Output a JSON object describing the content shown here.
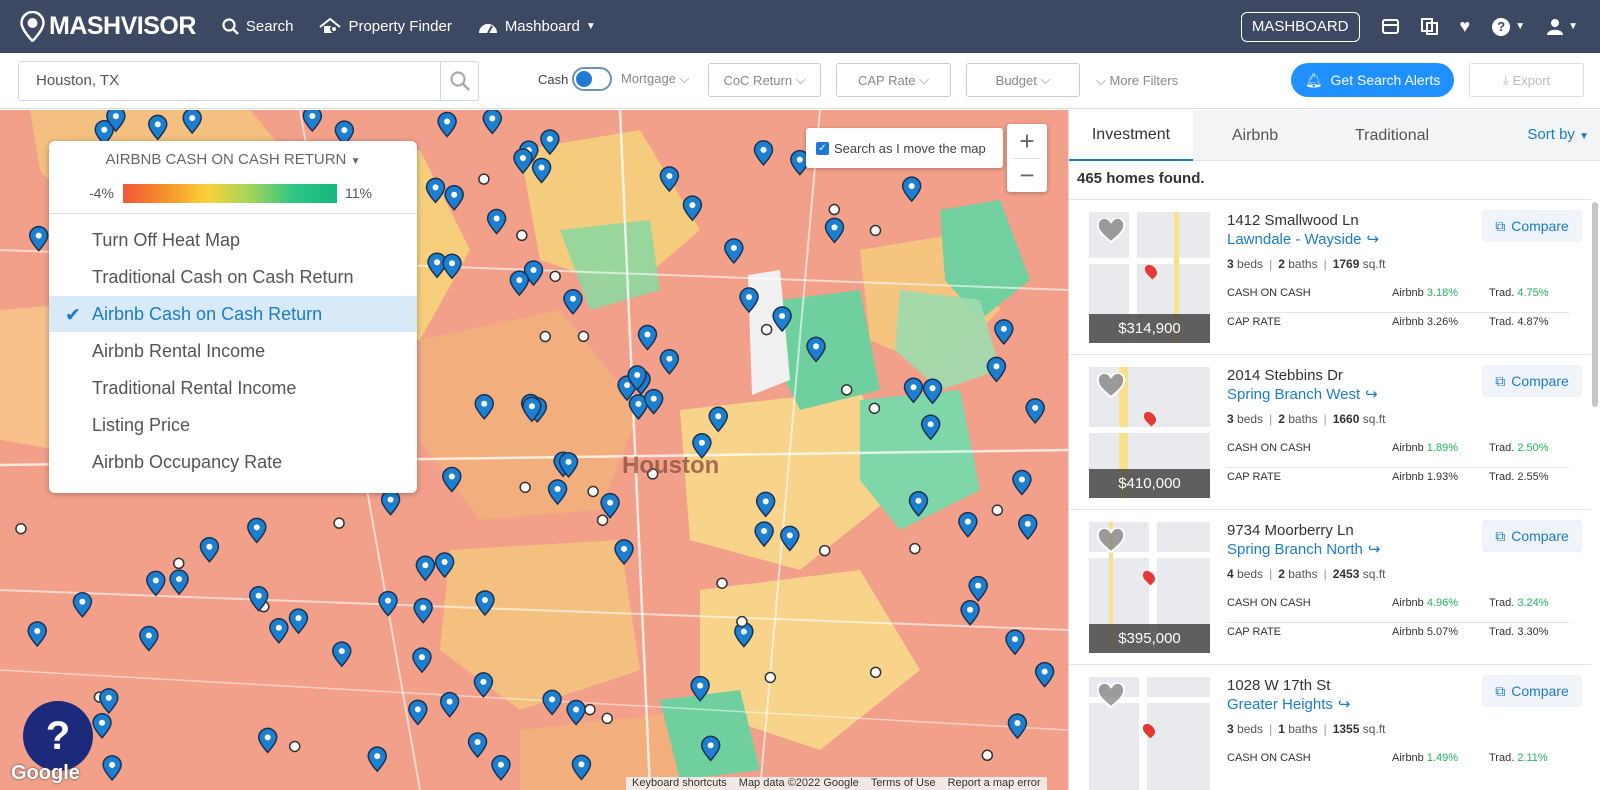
{
  "nav": {
    "brand": "MASHVISOR",
    "links": [
      {
        "label": "Search",
        "icon": "search-icon"
      },
      {
        "label": "Property Finder",
        "icon": "property-finder-icon"
      },
      {
        "label": "Mashboard",
        "icon": "dashboard-gauge-icon"
      }
    ],
    "mashboard_button": "MASHBOARD"
  },
  "filters": {
    "location": "Houston, TX",
    "cash_label": "Cash",
    "mortgage_label": "Mortgage",
    "dropdowns": [
      "CoC Return",
      "CAP Rate",
      "Budget"
    ],
    "more_filters": "More Filters",
    "alerts_button": "Get Search Alerts",
    "export_button": "Export"
  },
  "map": {
    "panel_title": "AIRBNB CASH ON CASH RETURN",
    "min": "-4%",
    "max": "11%",
    "options": [
      "Turn Off Heat Map",
      "Traditional Cash on Cash Return",
      "Airbnb Cash on Cash Return",
      "Airbnb Rental Income",
      "Traditional Rental Income",
      "Listing Price",
      "Airbnb Occupancy Rate"
    ],
    "selected_option": "Airbnb Cash on Cash Return",
    "search_as_move": "Search as I move the map",
    "zoom_in": "+",
    "zoom_out": "−",
    "help": "?",
    "google": "Google",
    "city_label": "Houston",
    "attribution": [
      "Keyboard shortcuts",
      "Map data ©2022 Google",
      "Terms of Use",
      "Report a map error"
    ]
  },
  "panel": {
    "tabs": [
      "Investment",
      "Airbnb",
      "Traditional"
    ],
    "active_tab": "Investment",
    "sort": "Sort by",
    "found": "465 homes found.",
    "listings": [
      {
        "address": "1412 Smallwood Ln",
        "neighborhood": "Lawndale - Wayside",
        "beds": "3",
        "baths": "2",
        "sqft": "1769",
        "price": "$314,900",
        "coc_airbnb": "3.18%",
        "coc_trad": "4.75%",
        "cap_airbnb": "3.26%",
        "cap_trad": "4.87%"
      },
      {
        "address": "2014 Stebbins Dr",
        "neighborhood": "Spring Branch West",
        "beds": "3",
        "baths": "2",
        "sqft": "1660",
        "price": "$410,000",
        "coc_airbnb": "1.89%",
        "coc_trad": "2.50%",
        "cap_airbnb": "1.93%",
        "cap_trad": "2.55%"
      },
      {
        "address": "9734 Moorberry Ln",
        "neighborhood": "Spring Branch North",
        "beds": "4",
        "baths": "2",
        "sqft": "2453",
        "price": "$395,000",
        "coc_airbnb": "4.96%",
        "coc_trad": "3.24%",
        "cap_airbnb": "5.07%",
        "cap_trad": "3.30%"
      },
      {
        "address": "1028 W 17th St",
        "neighborhood": "Greater Heights",
        "beds": "3",
        "baths": "1",
        "sqft": "1355",
        "price": "",
        "coc_airbnb": "1.49%",
        "coc_trad": "2.11%",
        "cap_airbnb": "",
        "cap_trad": ""
      }
    ],
    "labels": {
      "beds": "beds",
      "baths": "baths",
      "sqft": "sq.ft",
      "coc": "CASH ON CASH",
      "cap": "CAP RATE",
      "airbnb": "Airbnb",
      "trad": "Trad.",
      "compare": "Compare"
    }
  },
  "colors": {
    "nav_bg": "#3d4962",
    "accent": "#1c7cc8",
    "positive": "#21b25a",
    "alert_button": "#1e90ff"
  }
}
